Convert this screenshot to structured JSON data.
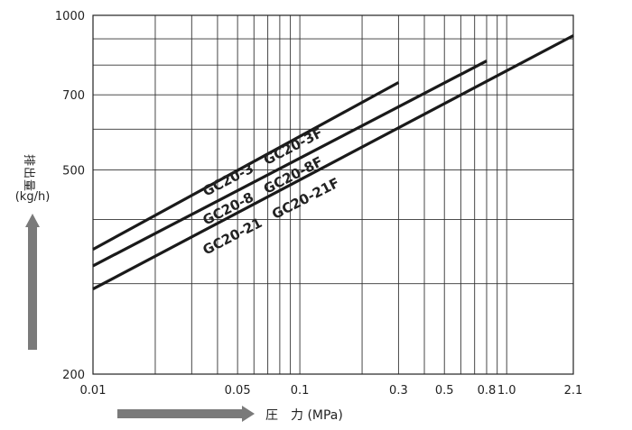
{
  "chart_data": {
    "type": "line",
    "x_scale": "log",
    "y_scale": "log",
    "xlim": [
      0.01,
      2.1
    ],
    "ylim": [
      200,
      1000
    ],
    "grid": true,
    "x_ticks": [
      {
        "value": 0.01,
        "label": "0.01"
      },
      {
        "value": 0.05,
        "label": "0.05"
      },
      {
        "value": 0.1,
        "label": "0.1"
      },
      {
        "value": 0.3,
        "label": "0.3"
      },
      {
        "value": 0.5,
        "label": "0.5"
      },
      {
        "value": 0.8,
        "label": "0.8"
      },
      {
        "value": 1.0,
        "label": "1.0"
      },
      {
        "value": 2.1,
        "label": "2.1"
      }
    ],
    "y_ticks": [
      {
        "value": 200,
        "label": "200"
      },
      {
        "value": 500,
        "label": "500"
      },
      {
        "value": 700,
        "label": "700"
      },
      {
        "value": 1000,
        "label": "1000"
      }
    ],
    "xlabel": "圧　力 (MPa)",
    "ylabel": "排出量",
    "yunit": "(kg/h)",
    "series": [
      {
        "name": "GC20-3　GC20-3F",
        "x": [
          0.01,
          0.3
        ],
        "y": [
          350,
          740
        ]
      },
      {
        "name": "GC20-8　GC20-8F",
        "x": [
          0.01,
          0.8
        ],
        "y": [
          325,
          815
        ]
      },
      {
        "name": "GC20-21　GC20-21F",
        "x": [
          0.01,
          2.1
        ],
        "y": [
          293,
          913
        ]
      }
    ]
  }
}
